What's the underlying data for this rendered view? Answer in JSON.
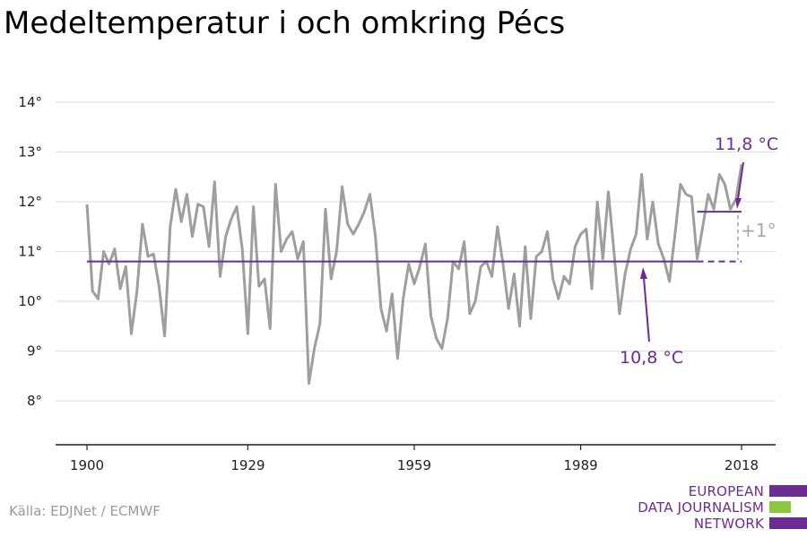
{
  "chart_data": {
    "type": "line",
    "title": "Medeltemperatur i och omkring Pécs",
    "xlabel": "",
    "ylabel": "",
    "ylim": [
      7.5,
      14.5
    ],
    "xlim": [
      1895,
      2022
    ],
    "y_ticks": [
      8,
      9,
      10,
      11,
      12,
      13,
      14
    ],
    "y_tick_labels": [
      "8°",
      "9°",
      "10°",
      "11°",
      "12°",
      "13°",
      "14°"
    ],
    "x_ticks": [
      1900,
      1929,
      1959,
      1989,
      2018
    ],
    "x_tick_labels": [
      "1900",
      "1929",
      "1959",
      "1989",
      "2018"
    ],
    "grid": true,
    "series": [
      {
        "color": "#9e9e9e",
        "x": [
          1900,
          1901,
          1902,
          1903,
          1904,
          1905,
          1906,
          1907,
          1908,
          1909,
          1910,
          1911,
          1912,
          1913,
          1914,
          1915,
          1916,
          1917,
          1918,
          1919,
          1920,
          1921,
          1922,
          1923,
          1924,
          1925,
          1926,
          1927,
          1928,
          1929,
          1930,
          1931,
          1932,
          1933,
          1934,
          1935,
          1936,
          1937,
          1938,
          1939,
          1940,
          1941,
          1942,
          1943,
          1944,
          1945,
          1946,
          1947,
          1948,
          1949,
          1950,
          1951,
          1952,
          1953,
          1954,
          1955,
          1956,
          1957,
          1958,
          1959,
          1960,
          1961,
          1962,
          1963,
          1964,
          1965,
          1966,
          1967,
          1968,
          1969,
          1970,
          1971,
          1972,
          1973,
          1974,
          1975,
          1976,
          1977,
          1978,
          1979,
          1980,
          1981,
          1982,
          1983,
          1984,
          1985,
          1986,
          1987,
          1988,
          1989,
          1990,
          1991,
          1992,
          1993,
          1994,
          1995,
          1996,
          1997,
          1998,
          1999,
          2000,
          2001,
          2002,
          2003,
          2004,
          2005,
          2006,
          2007,
          2008,
          2009,
          2010,
          2011,
          2012,
          2013,
          2014,
          2015,
          2016,
          2017,
          2018
        ],
        "values": [
          11.95,
          10.2,
          10.05,
          11.0,
          10.75,
          11.05,
          10.25,
          10.7,
          9.35,
          10.2,
          11.55,
          10.9,
          10.95,
          10.3,
          9.3,
          11.5,
          12.25,
          11.6,
          12.15,
          11.3,
          11.95,
          11.9,
          11.1,
          12.4,
          10.5,
          11.3,
          11.65,
          11.9,
          11.05,
          9.35,
          11.9,
          10.3,
          10.45,
          9.45,
          12.35,
          11.0,
          11.25,
          11.4,
          10.85,
          11.2,
          8.35,
          9.05,
          9.55,
          11.85,
          10.45,
          11.0,
          12.3,
          11.55,
          11.35,
          11.55,
          11.8,
          12.15,
          11.3,
          9.85,
          9.4,
          10.15,
          8.85,
          10.05,
          10.75,
          10.35,
          10.7,
          11.15,
          9.7,
          9.25,
          9.05,
          9.65,
          10.8,
          10.65,
          11.2,
          9.75,
          10.0,
          10.7,
          10.8,
          10.5,
          11.5,
          10.75,
          9.85,
          10.55,
          9.5,
          11.1,
          9.65,
          10.9,
          11.0,
          11.4,
          10.45,
          10.05,
          10.5,
          10.35,
          11.1,
          11.35,
          11.45,
          10.25,
          12.0,
          10.85,
          12.2,
          11.0,
          9.75,
          10.55,
          11.05,
          11.35,
          12.55,
          11.25,
          12.0,
          11.15,
          10.85,
          10.4,
          11.35,
          12.35,
          12.15,
          12.1,
          10.85,
          11.5,
          12.15,
          11.85,
          12.55,
          12.35,
          11.85,
          12.05,
          12.75
        ]
      }
    ],
    "baseline": {
      "value": 10.8,
      "from": 1900,
      "to": 2018,
      "dashed_from": 2010,
      "color": "#6c2c91"
    },
    "recent": {
      "value": 11.8,
      "from": 2010,
      "to": 2018,
      "color": "#6c2c91"
    },
    "annotations": {
      "recent_label": "11,8 °C",
      "baseline_label": "10,8 °C",
      "difference_label": "+1°"
    }
  },
  "source": "Källa: EDJNet / ECMWF",
  "logo": {
    "lines": [
      "EUROPEAN",
      "DATA JOURNALISM",
      "NETWORK"
    ],
    "color_purple": "#6c2c91",
    "color_green": "#8dc63f"
  }
}
